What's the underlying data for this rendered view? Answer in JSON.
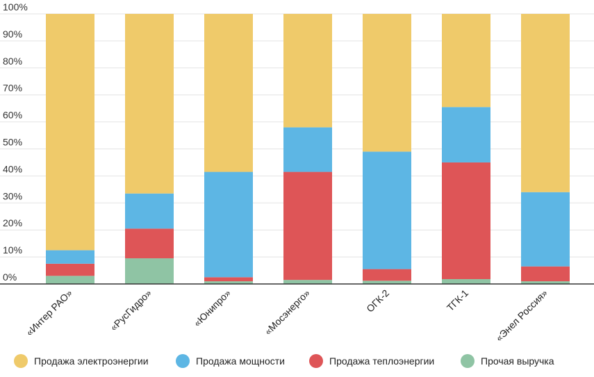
{
  "chart_data": {
    "type": "bar",
    "stacked": true,
    "normalized": true,
    "grid": true,
    "legend_position": "bottom",
    "ylim": [
      0,
      100
    ],
    "y_ticks": [
      "0%",
      "10%",
      "20%",
      "30%",
      "40%",
      "50%",
      "60%",
      "70%",
      "80%",
      "90%",
      "100%"
    ],
    "categories": [
      "«Интер РАО»",
      "«РусГидро»",
      "«Юнипро»",
      "«Мосэнерго»",
      "ОГК-2",
      "ТГК-1",
      "«Энел Россия»"
    ],
    "series": [
      {
        "name": "Прочая выручка",
        "color": "#8fc4a4",
        "values": [
          3,
          9.5,
          1,
          1.5,
          1.2,
          1.8,
          1
        ]
      },
      {
        "name": "Продажа теплоэнергии",
        "color": "#de5557",
        "values": [
          4.5,
          11,
          1.5,
          40,
          4.3,
          43.2,
          5.5
        ]
      },
      {
        "name": "Продажа мощности",
        "color": "#5db6e4",
        "values": [
          5,
          13,
          39,
          16.5,
          43.5,
          20.5,
          27.5
        ]
      },
      {
        "name": "Продажа электроэнергии",
        "color": "#efca6a",
        "values": [
          87.5,
          66.5,
          58.5,
          42,
          51,
          34.5,
          66
        ]
      }
    ]
  },
  "legend": [
    {
      "label": "Продажа электроэнергии",
      "color": "#efca6a"
    },
    {
      "label": "Продажа мощности",
      "color": "#5db6e4"
    },
    {
      "label": "Продажа теплоэнергии",
      "color": "#de5557"
    },
    {
      "label": "Прочая выручка",
      "color": "#8fc4a4"
    }
  ]
}
